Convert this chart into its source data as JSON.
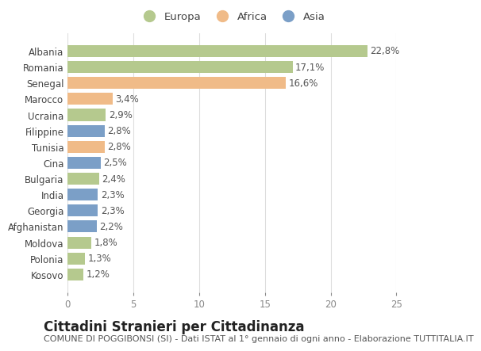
{
  "countries": [
    "Albania",
    "Romania",
    "Senegal",
    "Marocco",
    "Ucraina",
    "Filippine",
    "Tunisia",
    "Cina",
    "Bulgaria",
    "India",
    "Georgia",
    "Afghanistan",
    "Moldova",
    "Polonia",
    "Kosovo"
  ],
  "values": [
    22.8,
    17.1,
    16.6,
    3.4,
    2.9,
    2.8,
    2.8,
    2.5,
    2.4,
    2.3,
    2.3,
    2.2,
    1.8,
    1.3,
    1.2
  ],
  "labels": [
    "22,8%",
    "17,1%",
    "16,6%",
    "3,4%",
    "2,9%",
    "2,8%",
    "2,8%",
    "2,5%",
    "2,4%",
    "2,3%",
    "2,3%",
    "2,2%",
    "1,8%",
    "1,3%",
    "1,2%"
  ],
  "continents": [
    "Europa",
    "Europa",
    "Africa",
    "Africa",
    "Europa",
    "Asia",
    "Africa",
    "Asia",
    "Europa",
    "Asia",
    "Asia",
    "Asia",
    "Europa",
    "Europa",
    "Europa"
  ],
  "colors": {
    "Europa": "#b5c98e",
    "Africa": "#f0bb88",
    "Asia": "#7b9fc7"
  },
  "legend_labels": [
    "Europa",
    "Africa",
    "Asia"
  ],
  "xlim": [
    0,
    25
  ],
  "xticks": [
    0,
    5,
    10,
    15,
    20,
    25
  ],
  "title": "Cittadini Stranieri per Cittadinanza",
  "subtitle": "COMUNE DI POGGIBONSI (SI) - Dati ISTAT al 1° gennaio di ogni anno - Elaborazione TUTTITALIA.IT",
  "bg_color": "#ffffff",
  "plot_bg_color": "#ffffff",
  "grid_color": "#dddddd",
  "title_fontsize": 12,
  "subtitle_fontsize": 8,
  "label_fontsize": 8.5,
  "tick_fontsize": 8.5,
  "legend_fontsize": 9.5
}
